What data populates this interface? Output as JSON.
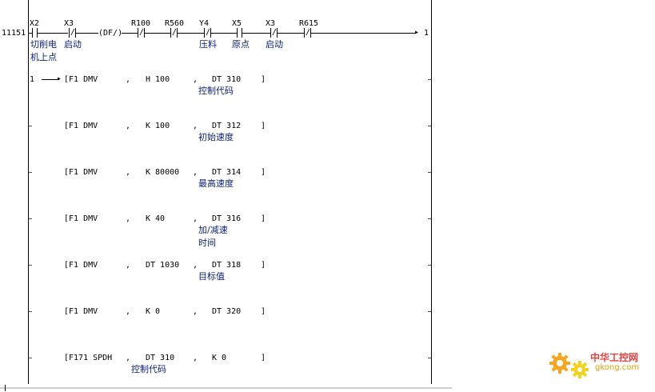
{
  "header": {
    "line_number": "11151",
    "continuation_out": "1",
    "contacts": [
      {
        "label": "X2",
        "comment": "切削电机上点",
        "type": "NO"
      },
      {
        "label": "X3",
        "comment": "启动",
        "type": "NC"
      },
      {
        "label": "(DF/)",
        "comment": "",
        "type": "edge"
      },
      {
        "label": "R100",
        "comment": "",
        "type": "NC"
      },
      {
        "label": "R560",
        "comment": "",
        "type": "NC"
      },
      {
        "label": "Y4",
        "comment": "压料",
        "type": "NC"
      },
      {
        "label": "X5",
        "comment": "原点",
        "type": "NO"
      },
      {
        "label": "X3",
        "comment": "启动",
        "type": "NC"
      },
      {
        "label": "R615",
        "comment": "",
        "type": "NC"
      }
    ]
  },
  "continuation_in": "1",
  "instructions": [
    {
      "op": "[F1 DMV",
      "sep1": ",",
      "operand1": "H 100",
      "comment1": "",
      "sep2": ",",
      "operand2": "DT 310",
      "comment2": "控制代码",
      "close": "]"
    },
    {
      "op": "[F1 DMV",
      "sep1": ",",
      "operand1": "K 100",
      "comment1": "",
      "sep2": ",",
      "operand2": "DT 312",
      "comment2": "初始速度",
      "close": "]"
    },
    {
      "op": "[F1 DMV",
      "sep1": ",",
      "operand1": "K 80000",
      "comment1": "",
      "sep2": ",",
      "operand2": "DT 314",
      "comment2": "最高速度",
      "close": "]"
    },
    {
      "op": "[F1 DMV",
      "sep1": ",",
      "operand1": "K 40",
      "comment1": "",
      "sep2": ",",
      "operand2": "DT 316",
      "comment2": "加/减速时间",
      "close": "]"
    },
    {
      "op": "[F1 DMV",
      "sep1": ",",
      "operand1": "DT 1030",
      "comment1": "",
      "sep2": ",",
      "operand2": "DT 318",
      "comment2": "目标值",
      "close": "]"
    },
    {
      "op": "[F1 DMV",
      "sep1": ",",
      "operand1": "K 0",
      "comment1": "",
      "sep2": ",",
      "operand2": "DT 320",
      "comment2": "",
      "close": "]"
    },
    {
      "op": "[F171 SPDH",
      "sep1": ",",
      "operand1": "DT 310",
      "comment1": "控制代码",
      "sep2": ",",
      "operand2": "K 0",
      "comment2": "",
      "close": "]"
    }
  ],
  "watermark": {
    "brand": "中华工控网",
    "url": "gkong.com",
    "colors": {
      "gear_orange": "#f5a623",
      "gear_yellow": "#f2d21b",
      "text_red": "#e8413c"
    }
  }
}
